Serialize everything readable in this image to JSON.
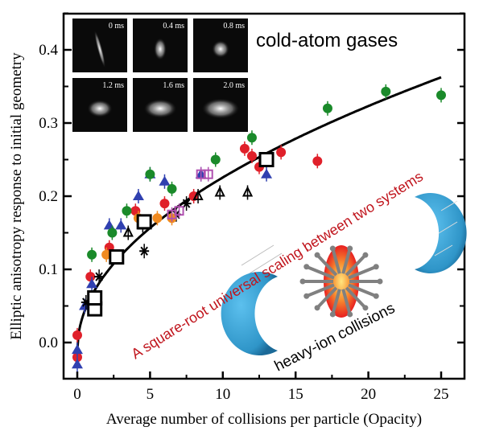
{
  "chart_data": {
    "type": "scatter",
    "title": "",
    "xlabel": "Average number of collisions per particle (Opacity)",
    "ylabel": "Elliptic anisotropy response to initial geometry",
    "xlim": [
      -1,
      26
    ],
    "ylim": [
      -0.05,
      0.45
    ],
    "xticks": [
      "0",
      "5",
      "10",
      "15",
      "20",
      "25"
    ],
    "xtick_values": [
      0,
      5,
      10,
      15,
      20,
      25
    ],
    "yticks": [
      "0.0",
      "0.1",
      "0.2",
      "0.3",
      "0.4"
    ],
    "ytick_values": [
      0.0,
      0.1,
      0.2,
      0.3,
      0.4
    ],
    "grid": false,
    "fit_curve": {
      "form": "square-root",
      "a": 0.0745,
      "b": -0.01,
      "color": "#000000"
    },
    "series": [
      {
        "marker": "circle",
        "color": "#e0202a",
        "points": [
          [
            0,
            -0.02
          ],
          [
            0,
            0.01
          ],
          [
            0.9,
            0.09
          ],
          [
            2.2,
            0.13
          ],
          [
            4,
            0.18
          ],
          [
            6,
            0.19
          ],
          [
            8,
            0.2
          ],
          [
            11.5,
            0.265
          ],
          [
            12,
            0.255
          ],
          [
            12.5,
            0.24
          ],
          [
            14,
            0.26
          ],
          [
            16.5,
            0.248
          ]
        ]
      },
      {
        "marker": "triangle",
        "color": "#3040b0",
        "points": [
          [
            0,
            -0.03
          ],
          [
            0,
            -0.01
          ],
          [
            0.5,
            0.05
          ],
          [
            1,
            0.08
          ],
          [
            2.2,
            0.16
          ],
          [
            3,
            0.16
          ],
          [
            4.2,
            0.2
          ],
          [
            5,
            0.23
          ],
          [
            6,
            0.22
          ],
          [
            8.5,
            0.23
          ],
          [
            13,
            0.23
          ]
        ]
      },
      {
        "marker": "circle",
        "color": "#1a8a2a",
        "points": [
          [
            1,
            0.12
          ],
          [
            2.4,
            0.15
          ],
          [
            3.4,
            0.18
          ],
          [
            5,
            0.23
          ],
          [
            6.5,
            0.21
          ],
          [
            9.5,
            0.25
          ],
          [
            12,
            0.28
          ],
          [
            17.2,
            0.32
          ],
          [
            21.2,
            0.343
          ],
          [
            25,
            0.338
          ]
        ]
      },
      {
        "marker": "open-triangle",
        "color": "#000000",
        "points": [
          [
            3.5,
            0.15
          ],
          [
            4.5,
            0.16
          ],
          [
            8.3,
            0.2
          ],
          [
            9.8,
            0.205
          ],
          [
            11.7,
            0.205
          ]
        ]
      },
      {
        "marker": "asterisk",
        "color": "#000000",
        "points": [
          [
            0.6,
            0.055
          ],
          [
            1.5,
            0.09
          ],
          [
            4.6,
            0.125
          ],
          [
            6.8,
            0.175
          ],
          [
            7.5,
            0.19
          ]
        ]
      },
      {
        "marker": "circle",
        "color": "#f08a20",
        "points": [
          [
            2,
            0.12
          ],
          [
            4.2,
            0.17
          ],
          [
            5.5,
            0.17
          ],
          [
            6.5,
            0.17
          ]
        ]
      },
      {
        "marker": "open-square",
        "color": "#b050b0",
        "points": [
          [
            6.5,
            0.175
          ],
          [
            7,
            0.18
          ],
          [
            8.5,
            0.23
          ],
          [
            9,
            0.23
          ]
        ]
      },
      {
        "marker": "open-square-large",
        "color": "#000000",
        "points": [
          [
            1.2,
            0.046
          ],
          [
            1.2,
            0.061
          ],
          [
            2.7,
            0.117
          ],
          [
            4.6,
            0.165
          ],
          [
            13,
            0.25
          ]
        ]
      }
    ],
    "annotations": {
      "cold_atom": "cold-atom gases",
      "scaling": "A square-root universal scaling between two systems",
      "heavy_ion": "heavy-ion collisions"
    },
    "inset_times": [
      "0 ms",
      "0.4 ms",
      "0.8 ms",
      "1.2 ms",
      "1.6 ms",
      "2.0 ms"
    ],
    "colors": {
      "annotation_red": "#c0141c",
      "nucleus_blue": "#3aa6d8",
      "fireball": "#f05020"
    }
  }
}
